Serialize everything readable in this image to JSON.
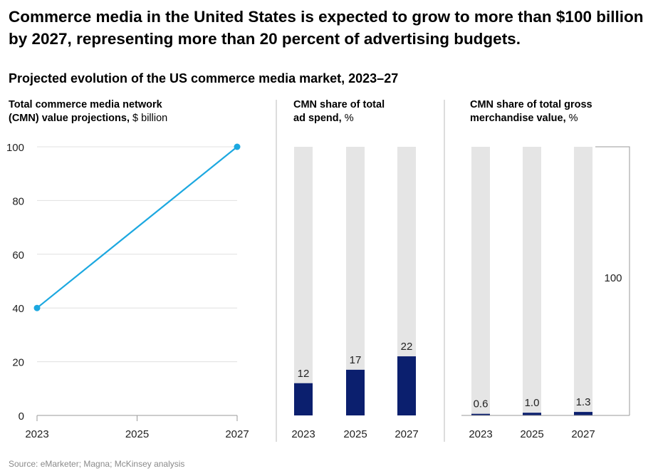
{
  "headline": "Commerce media in the United States is expected to grow to more than $100 billion by 2027, representing more than 20 percent of advertising budgets.",
  "subtitle": "Projected evolution of the US commerce media market, 2023–27",
  "source": "Source: eMarketer; Magna; McKinsey analysis",
  "colors": {
    "line": "#1ca8e0",
    "bar": "#0b1f6e",
    "bar_background": "#e5e5e5",
    "gridline": "#e0e0e0",
    "divider": "#bbbbbb",
    "axis_text": "#222222"
  },
  "chart_data": [
    {
      "type": "line",
      "title_bold_1": "Total commerce media network",
      "title_bold_2": "(CMN) value projections,",
      "title_unit": "$ billion",
      "x": [
        "2023",
        "2025",
        "2027"
      ],
      "y_ticks": [
        "100",
        "80",
        "60",
        "40",
        "20",
        "0"
      ],
      "ylim": [
        0,
        100
      ],
      "grid": true,
      "series": [
        {
          "points": [
            {
              "x": "2023",
              "y": 40
            },
            {
              "x": "2027",
              "y": 100
            }
          ]
        }
      ]
    },
    {
      "type": "bar",
      "title_bold_1": "CMN share of total",
      "title_bold_2": "ad spend,",
      "title_unit": "%",
      "categories": [
        "2023",
        "2025",
        "2027"
      ],
      "values": [
        12,
        17,
        22
      ],
      "value_labels": [
        "12",
        "17",
        "22"
      ],
      "background_value": 100,
      "ylim": [
        0,
        100
      ]
    },
    {
      "type": "bar",
      "title_bold_1": "CMN share of total gross",
      "title_bold_2": "merchandise value,",
      "title_unit": "%",
      "categories": [
        "2023",
        "2025",
        "2027"
      ],
      "values": [
        0.6,
        1.0,
        1.3
      ],
      "value_labels": [
        "0.6",
        "1.0",
        "1.3"
      ],
      "background_value": 100,
      "reference_label": "100",
      "ylim": [
        0,
        100
      ]
    }
  ]
}
